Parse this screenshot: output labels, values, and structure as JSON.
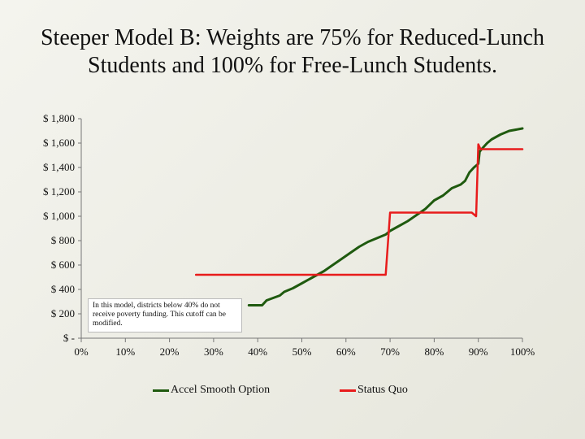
{
  "title_line1": "Steeper Model B: Weights are 75% for Reduced-Lunch",
  "title_line2": "Students and 100% for Free-Lunch Students.",
  "note": "In this model, districts below 40% do not receive poverty funding. This cutoff can be modified.",
  "colors": {
    "accel": "#1f5a0f",
    "status": "#e81c1c"
  },
  "chart_data": {
    "type": "line",
    "title": "Steeper Model B: Weights are 75% for Reduced-Lunch Students and 100% for Free-Lunch Students.",
    "xlim": [
      0,
      100
    ],
    "ylim": [
      0,
      1800
    ],
    "x_ticks": [
      0,
      10,
      20,
      30,
      40,
      50,
      60,
      70,
      80,
      90,
      100
    ],
    "x_tick_labels": [
      "0%",
      "10%",
      "20%",
      "30%",
      "40%",
      "50%",
      "60%",
      "70%",
      "80%",
      "90%",
      "100%"
    ],
    "y_ticks": [
      0,
      200,
      400,
      600,
      800,
      1000,
      1200,
      1400,
      1600,
      1800
    ],
    "y_tick_labels": [
      "$ -",
      "$ 200",
      "$ 400",
      "$ 600",
      "$ 800",
      "$ 1,000",
      "$ 1,200",
      "$ 1,400",
      "$ 1,600",
      "$ 1,800"
    ],
    "legend_position": "bottom",
    "series": [
      {
        "name": "Accel Smooth Option",
        "color": "#1f5a0f",
        "x": [
          38,
          41,
          42,
          45,
          46,
          48,
          50,
          53,
          55,
          57,
          59,
          61,
          63,
          65,
          67,
          69,
          70,
          72,
          74,
          76,
          78,
          80,
          82,
          84,
          86,
          87,
          88,
          89,
          90,
          90.3,
          91,
          92,
          93,
          95,
          97,
          100
        ],
        "y": [
          270,
          270,
          310,
          350,
          380,
          410,
          450,
          510,
          550,
          600,
          650,
          700,
          750,
          790,
          820,
          850,
          880,
          920,
          960,
          1010,
          1060,
          1130,
          1170,
          1230,
          1260,
          1290,
          1360,
          1400,
          1430,
          1530,
          1560,
          1600,
          1630,
          1670,
          1700,
          1720
        ]
      },
      {
        "name": "Status Quo",
        "color": "#e81c1c",
        "x": [
          26,
          69,
          70,
          88.5,
          89.5,
          90,
          90.5,
          100
        ],
        "y": [
          520,
          520,
          1030,
          1030,
          1000,
          1590,
          1550,
          1550
        ]
      }
    ]
  },
  "legend": {
    "accel": "Accel Smooth Option",
    "status": "Status Quo"
  }
}
